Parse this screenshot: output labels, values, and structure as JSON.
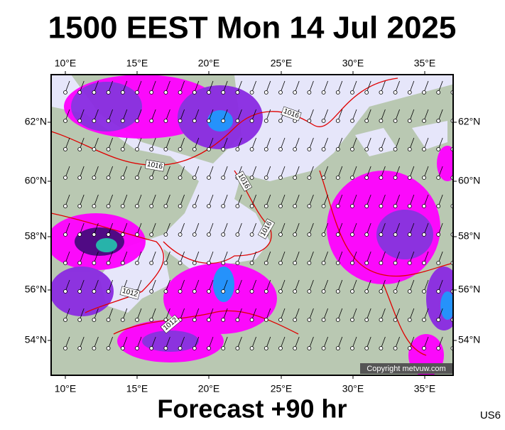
{
  "title": "1500 EEST Mon 14 Jul 2025",
  "footer": "Forecast +90 hr",
  "code": "US6",
  "copyright": "Copyright metvuw.com",
  "lon_labels": [
    "10°E",
    "15°E",
    "20°E",
    "25°E",
    "30°E",
    "35°E"
  ],
  "lat_labels": [
    "62°N",
    "60°N",
    "58°N",
    "56°N",
    "54°N"
  ],
  "isobar_labels": [
    "1016",
    "1016",
    "1016",
    "1016",
    "1012",
    "1012"
  ]
}
